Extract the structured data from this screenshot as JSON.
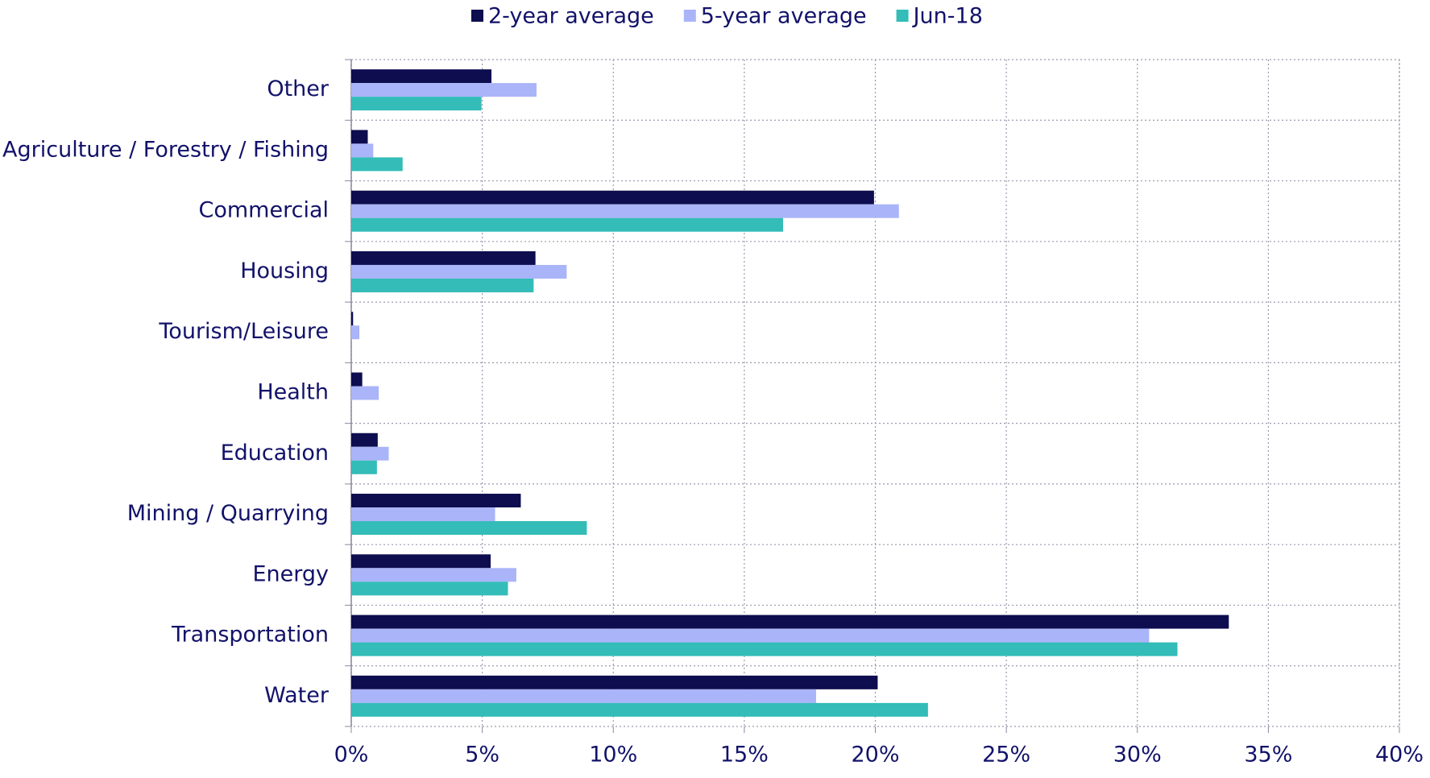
{
  "chart_data": {
    "type": "bar",
    "orientation": "horizontal",
    "categories": [
      "Other",
      "Agriculture / Forestry / Fishing",
      "Commercial",
      "Housing",
      "Tourism/Leisure",
      "Health",
      "Education",
      "Mining / Quarrying",
      "Energy",
      "Transportation",
      "Water"
    ],
    "series": [
      {
        "name": "2-year average",
        "color": "#0d0d4f",
        "values": [
          5.35,
          0.63,
          19.95,
          7.03,
          0.07,
          0.42,
          1.01,
          6.47,
          5.32,
          33.49,
          20.09
        ]
      },
      {
        "name": "5-year average",
        "color": "#aab4f8",
        "values": [
          7.07,
          0.84,
          20.9,
          8.22,
          0.31,
          1.05,
          1.43,
          5.49,
          6.3,
          30.45,
          17.74
        ]
      },
      {
        "name": "Jun-18",
        "color": "#33bcb8",
        "values": [
          4.97,
          1.96,
          16.48,
          6.96,
          0,
          0,
          0.98,
          8.99,
          5.98,
          31.53,
          22.01
        ]
      }
    ],
    "xlim": [
      0,
      40
    ],
    "xticks": [
      {
        "value": 0,
        "label": "0%"
      },
      {
        "value": 5,
        "label": "5%"
      },
      {
        "value": 10,
        "label": "10%"
      },
      {
        "value": 15,
        "label": "15%"
      },
      {
        "value": 20,
        "label": "20%"
      },
      {
        "value": 25,
        "label": "25%"
      },
      {
        "value": 30,
        "label": "30%"
      },
      {
        "value": 35,
        "label": "35%"
      },
      {
        "value": 40,
        "label": "40%"
      }
    ],
    "grid": true,
    "legend": "top"
  }
}
